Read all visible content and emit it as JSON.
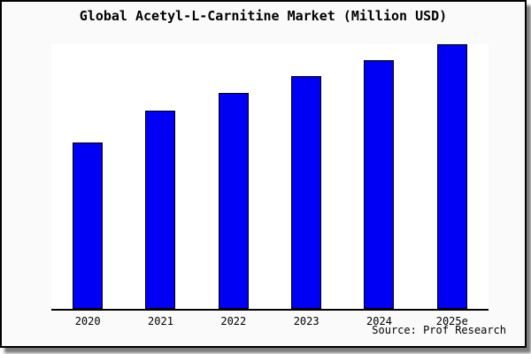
{
  "title": "Global Acetyl-L-Carnitine Market (Million USD)",
  "source": "Source: Prof Research",
  "colors": {
    "bar_fill": "#0000f5",
    "bar_border": "#000000",
    "figure_background": "#fafafa",
    "plot_background": "#ffffff",
    "axis_line": "#000000",
    "frame_border": "#000000",
    "frame_shadow": "#7d7d7d",
    "text": "#000000"
  },
  "chart_data": {
    "type": "bar",
    "title": "Global Acetyl-L-Carnitine Market (Million USD)",
    "categories": [
      "2020",
      "2021",
      "2022",
      "2023",
      "2024",
      "2025e"
    ],
    "values": [
      63,
      75,
      81.5,
      88,
      94,
      100
    ],
    "xlabel": "",
    "ylabel": "",
    "ylim": [
      0,
      100
    ],
    "y_axis_labels_visible": false,
    "x_tick_marks_visible": false,
    "grid": false,
    "legend": "none",
    "bar_color": "#0000f5",
    "bar_border_color": "#000000",
    "annotation": "Source: Prof Research"
  }
}
